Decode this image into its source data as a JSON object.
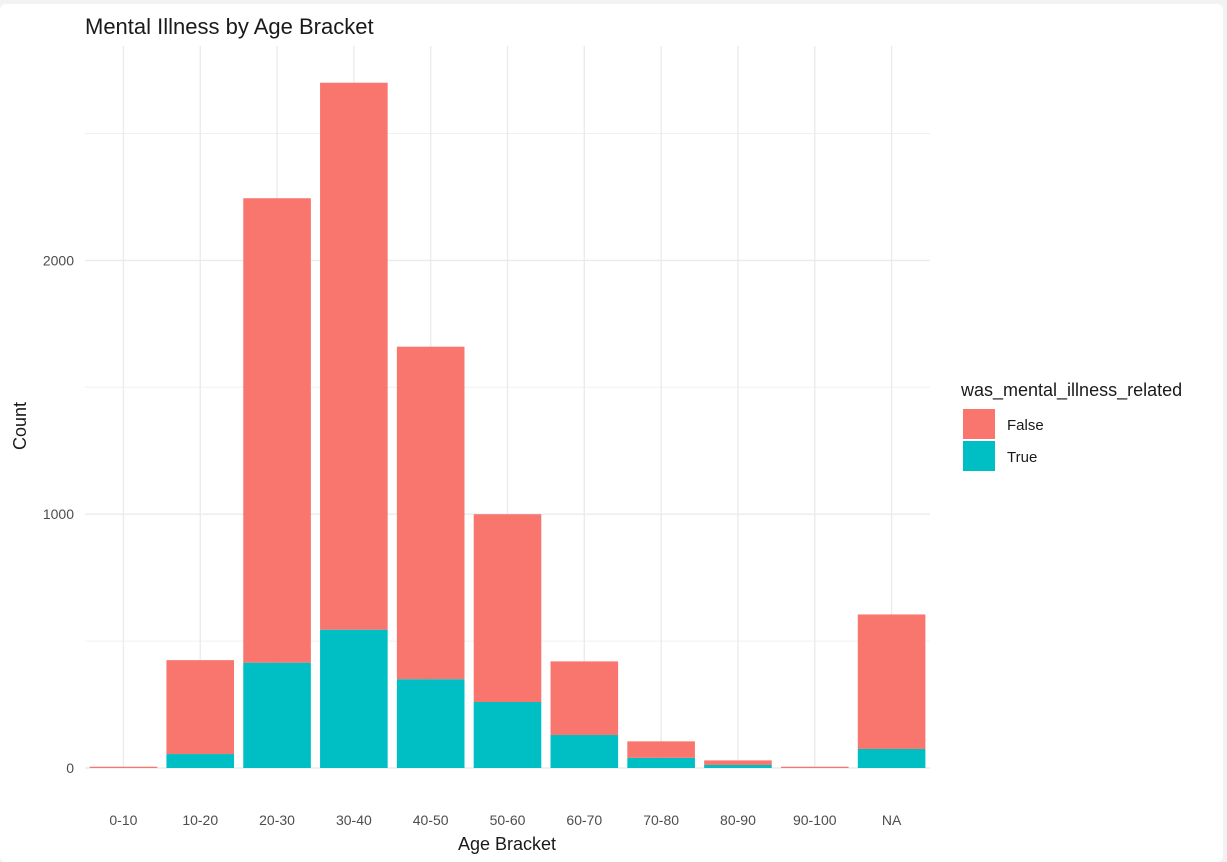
{
  "chart_data": {
    "type": "bar",
    "stacked": true,
    "title": "Mental Illness by Age Bracket",
    "xlabel": "Age Bracket",
    "ylabel": "Count",
    "categories": [
      "0-10",
      "10-20",
      "20-30",
      "30-40",
      "40-50",
      "50-60",
      "60-70",
      "70-80",
      "80-90",
      "90-100",
      "NA"
    ],
    "series": [
      {
        "name": "True",
        "color": "#00BFC4",
        "values": [
          0,
          55,
          415,
          545,
          350,
          260,
          130,
          40,
          12,
          0,
          75
        ]
      },
      {
        "name": "False",
        "color": "#F8766D",
        "values": [
          5,
          370,
          1830,
          2155,
          1310,
          740,
          290,
          65,
          18,
          5,
          530
        ]
      }
    ],
    "ylim": [
      0,
      2700
    ],
    "yticks": [
      0,
      1000,
      2000
    ],
    "grid": true,
    "legend": {
      "title": "was_mental_illness_related",
      "position": "right",
      "entries": [
        {
          "label": "False",
          "color": "#F8766D"
        },
        {
          "label": "True",
          "color": "#00BFC4"
        }
      ]
    }
  }
}
